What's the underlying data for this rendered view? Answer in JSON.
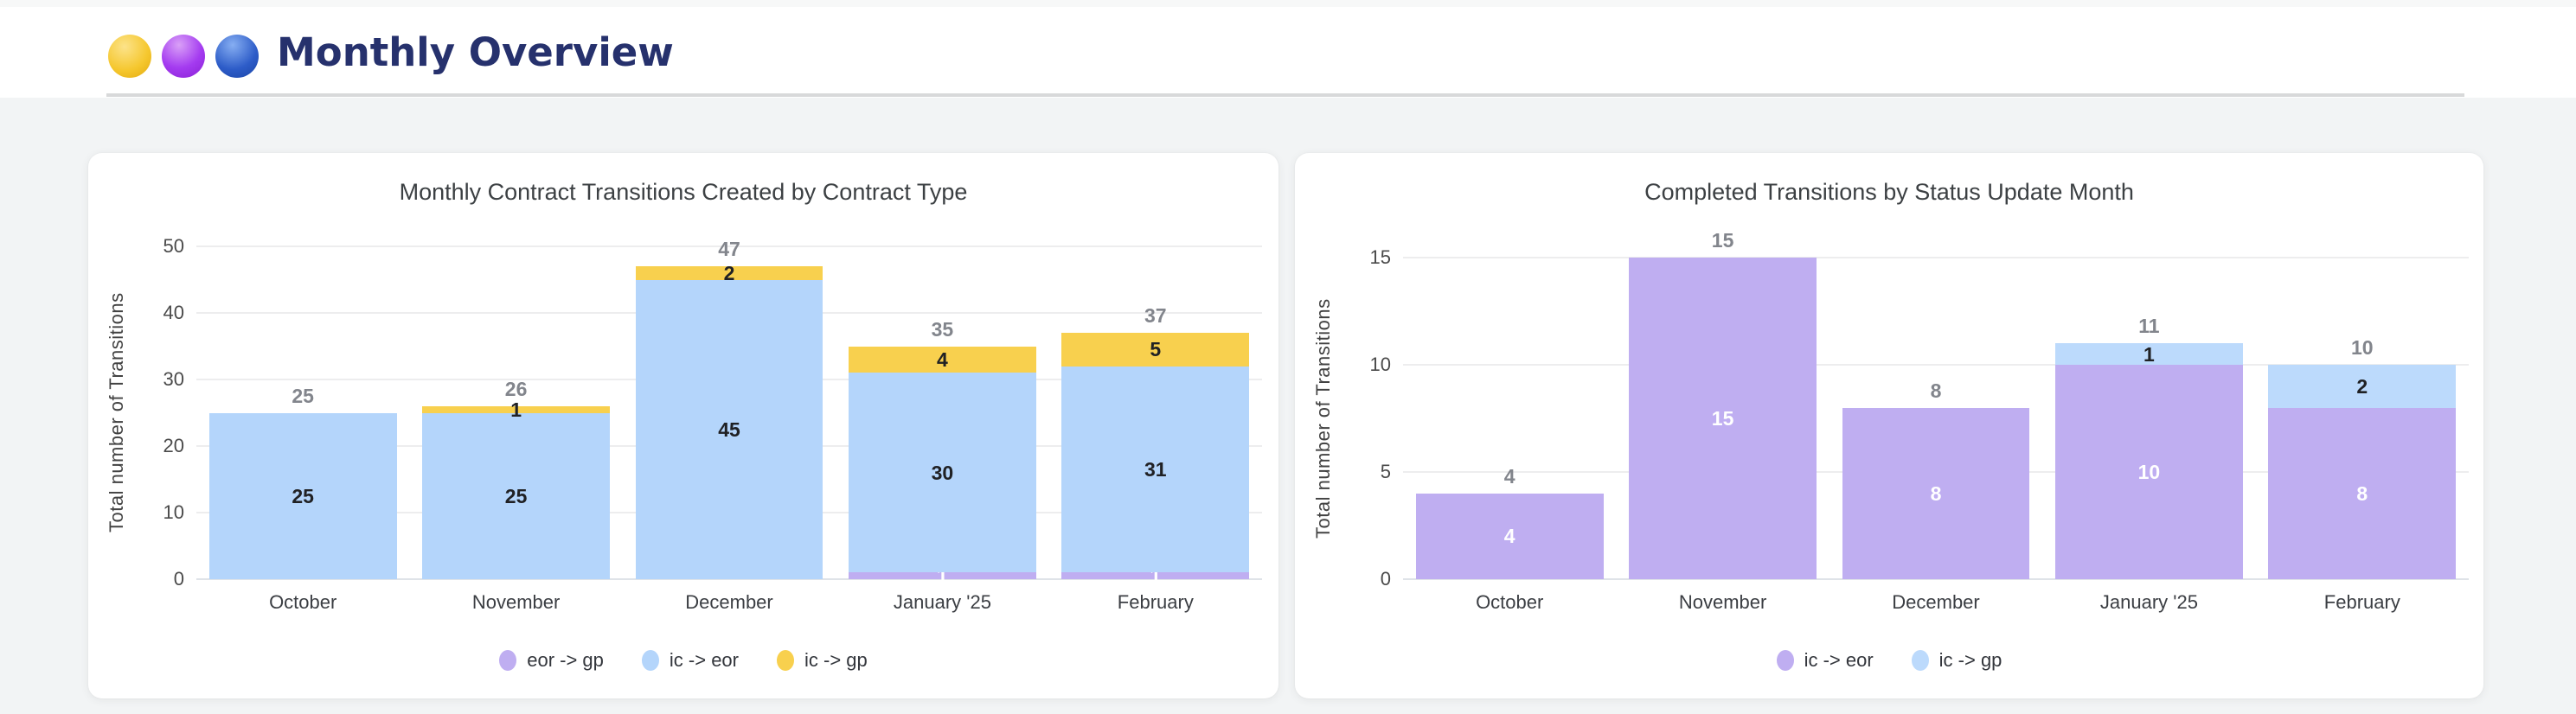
{
  "header": {
    "title": "Monthly Overview",
    "icons": [
      {
        "name": "yellow-circle",
        "color": "#f5c72e"
      },
      {
        "name": "purple-circle",
        "color": "#a43bf0"
      },
      {
        "name": "blue-circle",
        "color": "#2d5cc8"
      }
    ]
  },
  "chart_data": [
    {
      "type": "bar",
      "stacked": true,
      "title": "Monthly Contract Transitions Created by Contract Type",
      "xlabel": "",
      "ylabel": "Total number of Transitions",
      "categories": [
        "October",
        "November",
        "December",
        "January '25",
        "February"
      ],
      "series": [
        {
          "name": "eor -> gp",
          "color": "#bfaef1",
          "label_color": "#ffffff",
          "values": [
            0,
            0,
            0,
            1,
            1
          ]
        },
        {
          "name": "ic -> eor",
          "color": "#b4d5fb",
          "label_color": "#202124",
          "values": [
            25,
            25,
            45,
            30,
            31
          ]
        },
        {
          "name": "ic -> gp",
          "color": "#f8d04e",
          "label_color": "#202124",
          "values": [
            0,
            1,
            2,
            4,
            5
          ]
        }
      ],
      "totals": [
        25,
        26,
        47,
        35,
        37
      ],
      "yticks": [
        0,
        10,
        20,
        30,
        40,
        50
      ],
      "ylim": [
        0,
        50
      ],
      "grid": true,
      "legend_position": "bottom"
    },
    {
      "type": "bar",
      "stacked": true,
      "title": "Completed Transitions by Status Update Month",
      "xlabel": "",
      "ylabel": "Total number of Transitions",
      "categories": [
        "October",
        "November",
        "December",
        "January '25",
        "February"
      ],
      "series": [
        {
          "name": "ic -> eor",
          "color": "#bfaef1",
          "label_color": "#ffffff",
          "values": [
            4,
            15,
            8,
            10,
            8
          ]
        },
        {
          "name": "ic -> gp",
          "color": "#bcdafc",
          "label_color": "#202124",
          "values": [
            0,
            0,
            0,
            1,
            2
          ]
        }
      ],
      "totals": [
        4,
        15,
        8,
        11,
        10
      ],
      "yticks": [
        0,
        5,
        10,
        15
      ],
      "ylim": [
        0,
        15
      ],
      "grid": true,
      "legend_position": "bottom"
    }
  ]
}
